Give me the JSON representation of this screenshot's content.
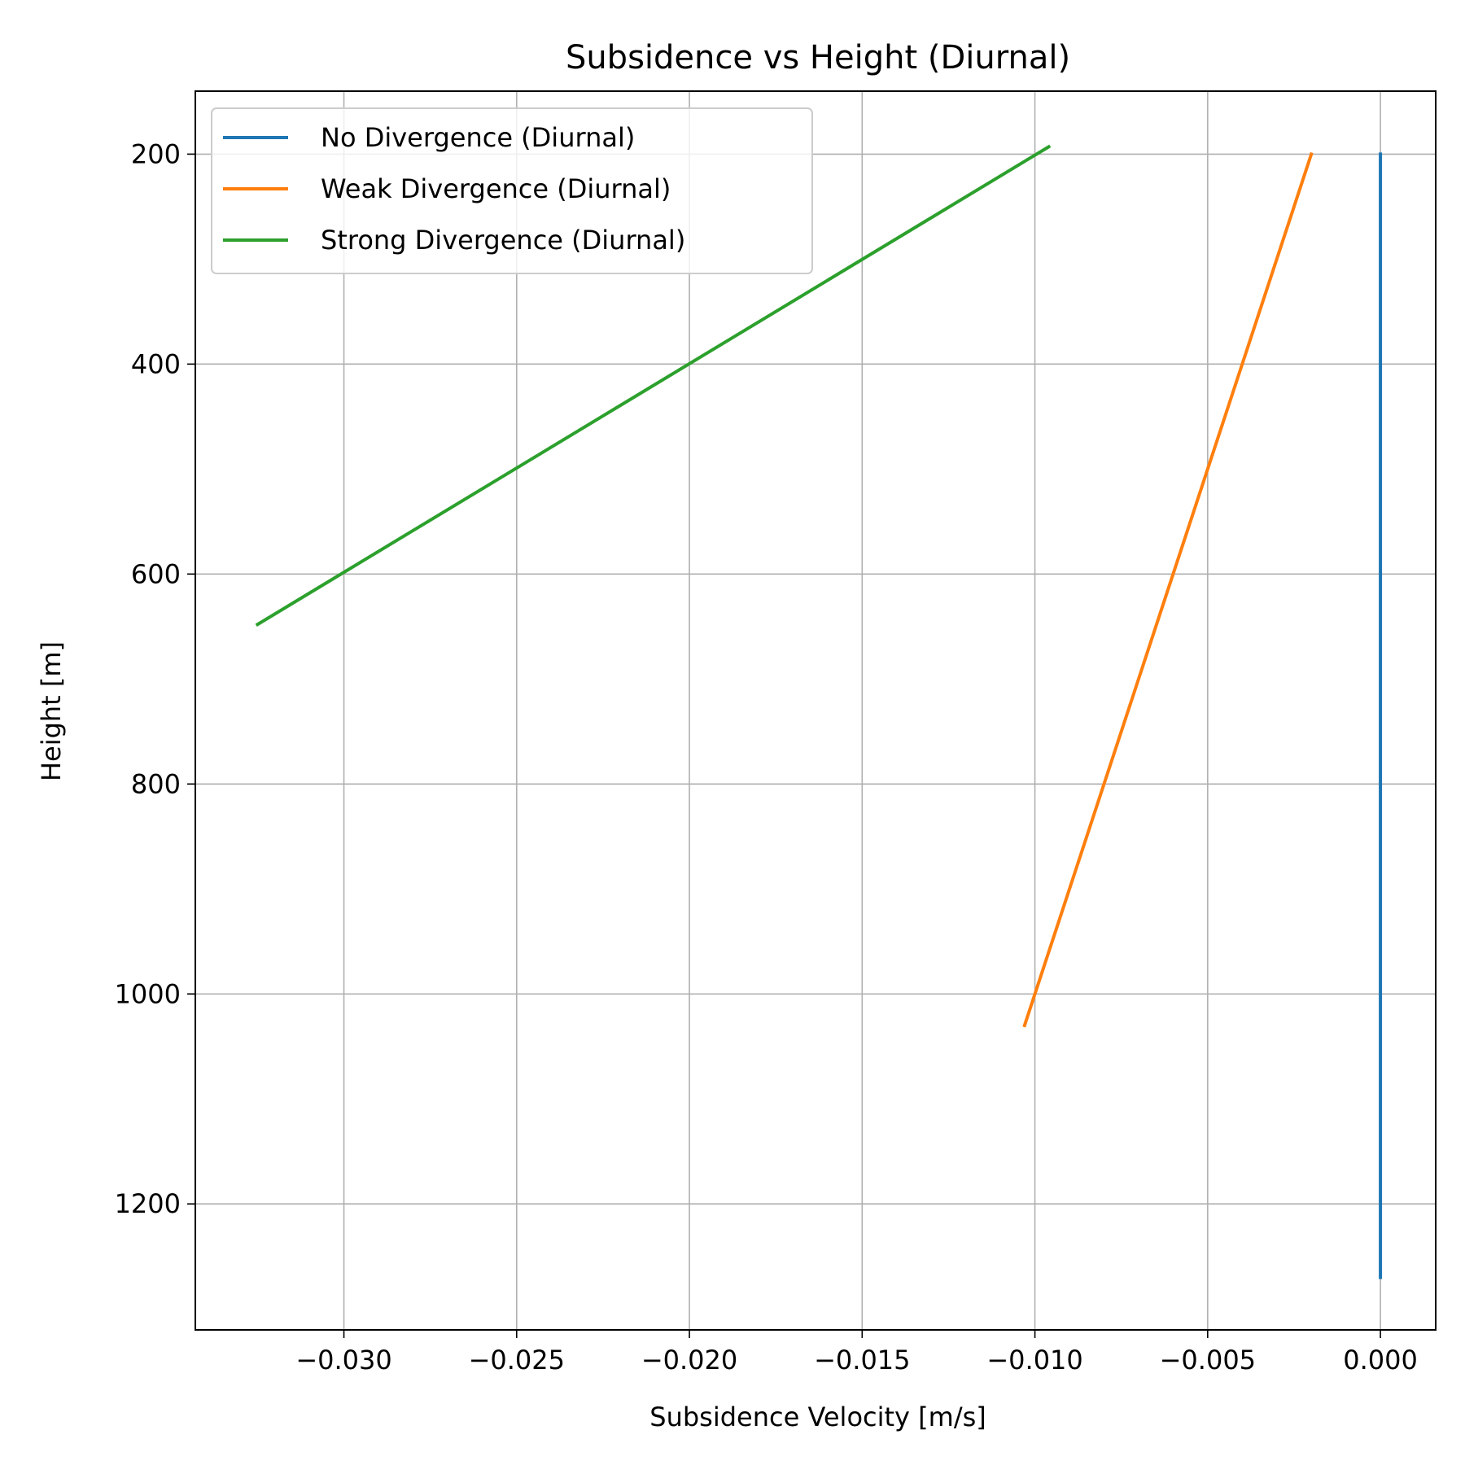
{
  "chart_data": {
    "type": "line",
    "title": "Subsidence vs Height (Diurnal)",
    "xlabel": "Subsidence Velocity [m/s]",
    "ylabel": "Height [m]",
    "xlim": [
      -0.0343,
      0.0016
    ],
    "ylim": [
      1320,
      140
    ],
    "y_inverted": true,
    "grid": true,
    "legend_position": "upper-left",
    "x_ticks": [
      -0.03,
      -0.025,
      -0.02,
      -0.015,
      -0.01,
      -0.005,
      0.0
    ],
    "x_tick_labels": [
      "−0.030",
      "−0.025",
      "−0.020",
      "−0.015",
      "−0.010",
      "−0.005",
      "0.000"
    ],
    "y_ticks": [
      200,
      400,
      600,
      800,
      1000,
      1200
    ],
    "y_tick_labels": [
      "200",
      "400",
      "600",
      "800",
      "1000",
      "1200"
    ],
    "series": [
      {
        "name": "No Divergence (Diurnal)",
        "color": "#1f77b4",
        "x": [
          0.0,
          0.0
        ],
        "y": [
          200,
          1270
        ]
      },
      {
        "name": "Weak Divergence (Diurnal)",
        "color": "#ff7f0e",
        "x": [
          -0.002,
          -0.0103
        ],
        "y": [
          200,
          1030
        ]
      },
      {
        "name": "Strong Divergence (Diurnal)",
        "color": "#2ca02c",
        "x": [
          -0.0096,
          -0.0325
        ],
        "y": [
          193,
          648
        ]
      }
    ]
  }
}
